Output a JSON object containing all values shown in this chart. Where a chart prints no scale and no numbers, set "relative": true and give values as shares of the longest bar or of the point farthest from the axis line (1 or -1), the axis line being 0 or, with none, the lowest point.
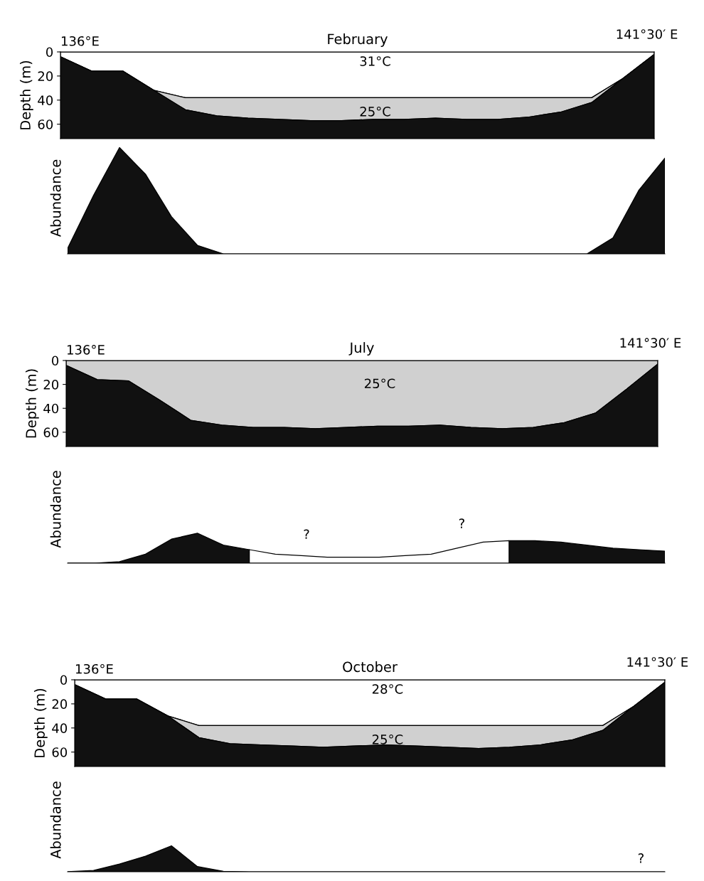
{
  "chart_data": [
    {
      "type": "area",
      "stacked": true,
      "title": "February",
      "ylabel": "Depth (m)",
      "tick_labels": "y",
      "ylim": [
        72,
        0
      ],
      "yticks": [
        0,
        20,
        40,
        60
      ],
      "categories": [
        null,
        null,
        null,
        null,
        null,
        null,
        null,
        null,
        null,
        null,
        null,
        null,
        null,
        null,
        null,
        null,
        null,
        null,
        null,
        null
      ],
      "series": [
        {
          "color": "#ffffff",
          "values": [
            4,
            16,
            16,
            32,
            38,
            38,
            38,
            38,
            38,
            38,
            38,
            38,
            38,
            38,
            38,
            38,
            38,
            38,
            22,
            2
          ]
        },
        {
          "color": "#d0d0d0",
          "values": [
            0,
            0,
            0,
            0,
            10,
            15,
            17,
            18,
            19,
            19,
            18,
            18,
            17,
            18,
            18,
            16,
            12,
            4,
            0,
            0
          ]
        },
        {
          "color": "#111111",
          "values": [
            68,
            56,
            56,
            40,
            24,
            19,
            17,
            16,
            15,
            15,
            16,
            16,
            17,
            16,
            16,
            18,
            22,
            30,
            50,
            70
          ]
        }
      ],
      "annotations": [
        "136°E",
        "141°30′ E",
        "31°C",
        "25°C"
      ]
    },
    {
      "type": "area",
      "relative": true,
      "ylabel": "Abundance",
      "tick_labels": false,
      "categories": [
        null,
        null,
        null,
        null,
        null,
        null,
        null,
        null,
        null,
        null,
        null,
        null,
        null,
        null,
        null,
        null,
        null,
        null,
        null,
        null,
        null,
        null,
        null,
        null
      ],
      "series": [
        {
          "color": "#111111",
          "values": [
            0.05,
            0.55,
            1.0,
            0.75,
            0.35,
            0.08,
            0,
            0,
            0,
            0,
            0,
            0,
            0,
            0,
            0,
            0,
            0,
            0,
            0,
            0,
            0,
            0.15,
            0.6,
            0.9
          ]
        }
      ]
    },
    {
      "type": "area",
      "stacked": true,
      "title": "July",
      "ylabel": "Depth (m)",
      "tick_labels": "y",
      "ylim": [
        72,
        0
      ],
      "yticks": [
        0,
        20,
        40,
        60
      ],
      "categories": [
        null,
        null,
        null,
        null,
        null,
        null,
        null,
        null,
        null,
        null,
        null,
        null,
        null,
        null,
        null,
        null,
        null,
        null,
        null,
        null
      ],
      "series": [
        {
          "color": "#d0d0d0",
          "values": [
            4,
            16,
            17,
            33,
            50,
            54,
            56,
            56,
            57,
            56,
            55,
            55,
            54,
            56,
            57,
            56,
            52,
            44,
            24,
            3
          ]
        },
        {
          "color": "#111111",
          "values": [
            68,
            56,
            55,
            39,
            22,
            18,
            16,
            16,
            15,
            16,
            17,
            17,
            18,
            16,
            15,
            16,
            20,
            28,
            48,
            69
          ]
        }
      ],
      "annotations": [
        "136°E",
        "141°30′ E",
        "25°C"
      ]
    },
    {
      "type": "area",
      "relative": true,
      "ylabel": "Abundance",
      "tick_labels": false,
      "categories": [
        null,
        null,
        null,
        null,
        null,
        null,
        null,
        null,
        null,
        null,
        null,
        null,
        null,
        null,
        null,
        null,
        null,
        null,
        null,
        null,
        null,
        null,
        null,
        null
      ],
      "series": [
        {
          "color": "#111111",
          "values": [
            0,
            0,
            0.05,
            0.3,
            0.8,
            1.0,
            0.6,
            0.45,
            null,
            null,
            null,
            null,
            null,
            null,
            null,
            null,
            null,
            0.75,
            0.75,
            0.7,
            0.6,
            0.5,
            0.45,
            0.4
          ]
        },
        {
          "color": "#ffffff",
          "values": [
            null,
            null,
            null,
            null,
            null,
            null,
            null,
            0.45,
            0.3,
            0.25,
            0.2,
            0.2,
            0.2,
            0.25,
            0.3,
            0.5,
            0.7,
            0.75,
            null,
            null,
            null,
            null,
            null,
            null
          ]
        }
      ],
      "annotations": [
        "?",
        "?"
      ]
    },
    {
      "type": "area",
      "stacked": true,
      "title": "October",
      "ylabel": "Depth (m)",
      "tick_labels": "y",
      "ylim": [
        72,
        0
      ],
      "yticks": [
        0,
        20,
        40,
        60
      ],
      "categories": [
        null,
        null,
        null,
        null,
        null,
        null,
        null,
        null,
        null,
        null,
        null,
        null,
        null,
        null,
        null,
        null,
        null,
        null,
        null,
        null
      ],
      "series": [
        {
          "color": "#ffffff",
          "values": [
            4,
            16,
            16,
            30,
            38,
            38,
            38,
            38,
            38,
            38,
            38,
            38,
            38,
            38,
            38,
            38,
            38,
            38,
            22,
            2
          ]
        },
        {
          "color": "#d0d0d0",
          "values": [
            0,
            0,
            0,
            0,
            10,
            15,
            16,
            17,
            18,
            17,
            16,
            17,
            18,
            19,
            18,
            16,
            12,
            4,
            0,
            0
          ]
        },
        {
          "color": "#111111",
          "values": [
            68,
            56,
            56,
            42,
            24,
            19,
            18,
            17,
            16,
            17,
            18,
            17,
            16,
            15,
            16,
            18,
            22,
            30,
            50,
            70
          ]
        }
      ],
      "annotations": [
        "136°E",
        "141°30′ E",
        "28°C",
        "25°C"
      ]
    },
    {
      "type": "area",
      "relative": true,
      "ylabel": "Abundance",
      "tick_labels": false,
      "categories": [
        null,
        null,
        null,
        null,
        null,
        null,
        null,
        null,
        null,
        null,
        null,
        null,
        null,
        null,
        null,
        null,
        null,
        null,
        null,
        null,
        null,
        null,
        null,
        null
      ],
      "series": [
        {
          "color": "#111111",
          "values": [
            0,
            0.05,
            0.3,
            0.6,
            1.0,
            0.2,
            0.02,
            0,
            0,
            0,
            0,
            0,
            0,
            0,
            0,
            0,
            0,
            0,
            0,
            0,
            0,
            0,
            0,
            0
          ]
        }
      ],
      "annotations": [
        "?"
      ]
    }
  ]
}
